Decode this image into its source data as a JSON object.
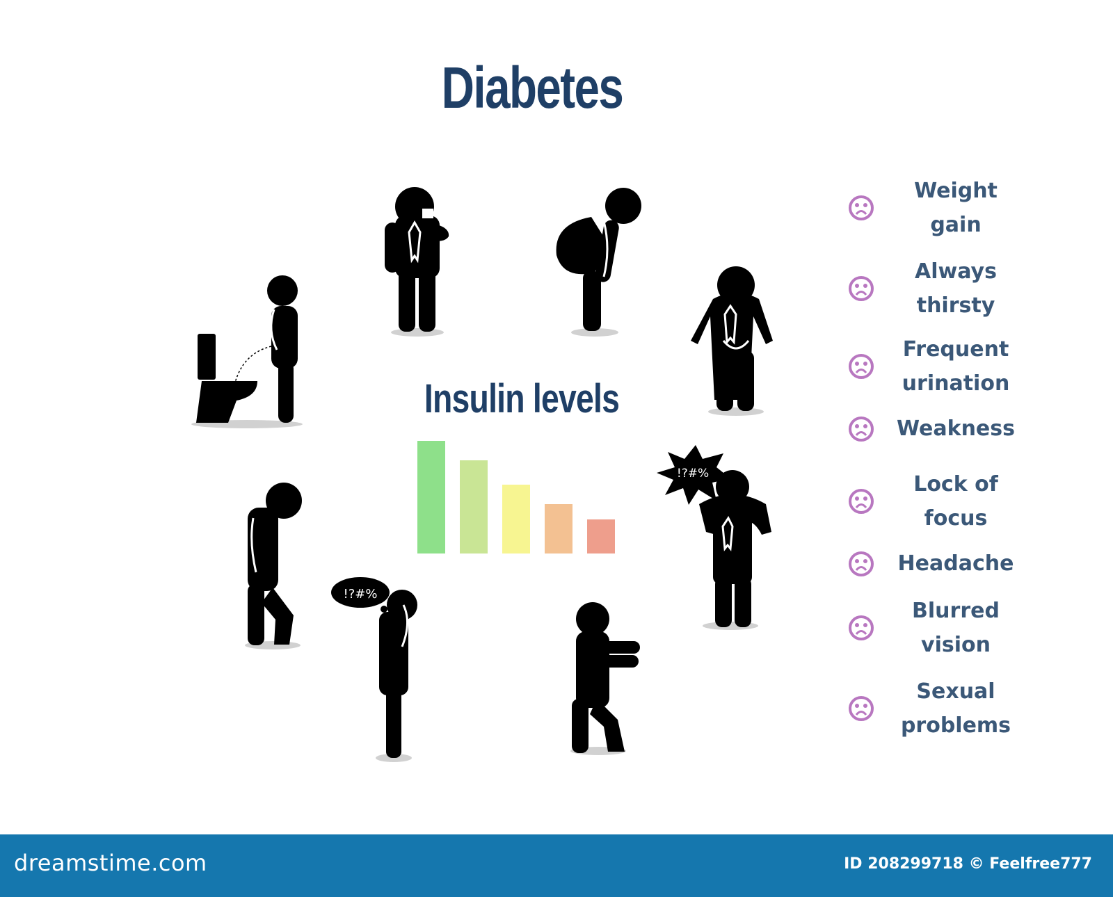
{
  "title": "Diabetes",
  "chart": {
    "title": "Insulin levels",
    "bar_colors": [
      "#8ee08a",
      "#c9e595",
      "#f7f591",
      "#f3c192",
      "#ee9e8c"
    ],
    "relative_levels": [
      1.0,
      0.83,
      0.61,
      0.44,
      0.3
    ]
  },
  "symptoms": [
    {
      "label": "Weight\ngain",
      "icon": "frown-face-icon"
    },
    {
      "label": "Always\nthirsty",
      "icon": "frown-face-icon"
    },
    {
      "label": "Frequent\nurination",
      "icon": "frown-face-icon"
    },
    {
      "label": "Weakness",
      "icon": "frown-face-icon"
    },
    {
      "label": "Lock of\nfocus",
      "icon": "frown-face-icon"
    },
    {
      "label": "Headache",
      "icon": "frown-face-icon"
    },
    {
      "label": "Blurred\nvision",
      "icon": "frown-face-icon"
    },
    {
      "label": "Sexual\nproblems",
      "icon": "frown-face-icon"
    }
  ],
  "figure_bubbles": {
    "thought": "!?#%",
    "burst": "!?#%"
  },
  "footer": {
    "brand": "dreamstime.com",
    "credit": "ID 208299718 © Feelfree777"
  },
  "colors": {
    "title": "#1f3f66",
    "symptom_text": "#3b5878",
    "icon": "#b877c0",
    "footer_bg": "#1577ae",
    "figure": "#000000"
  }
}
